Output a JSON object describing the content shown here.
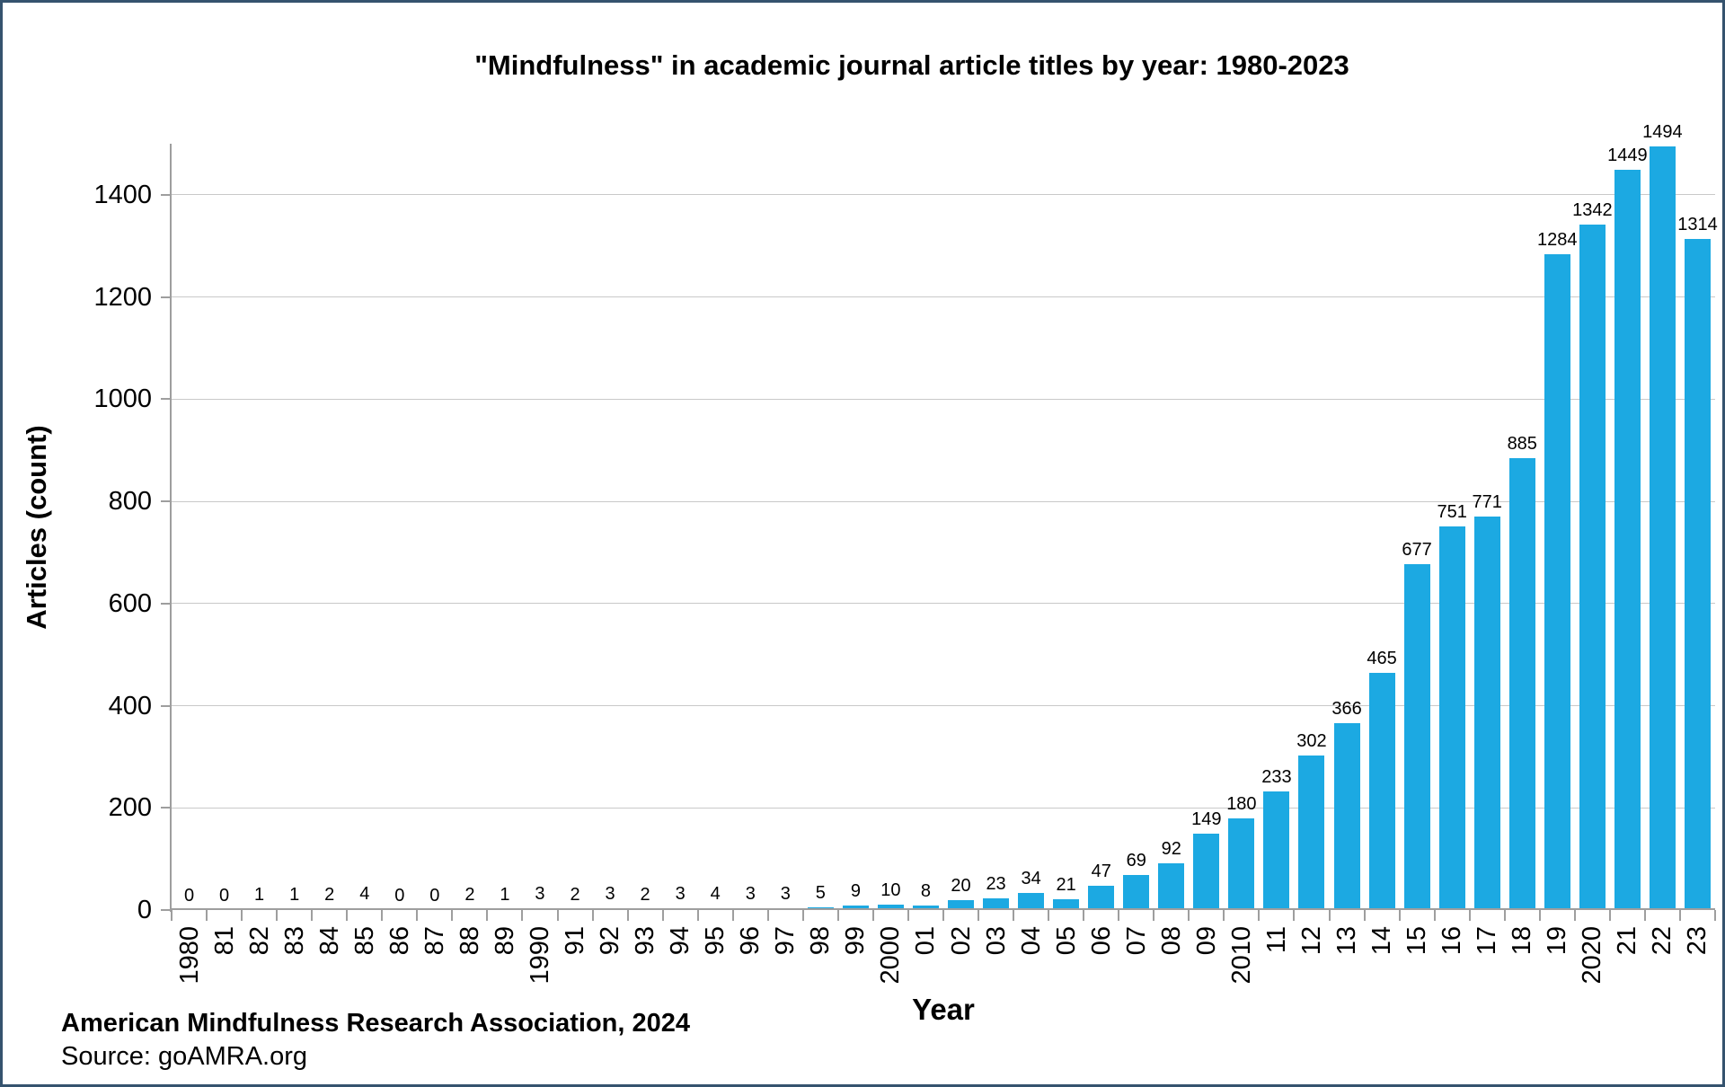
{
  "frame": {
    "background": "#FFFFFF",
    "border_color": "#35536E"
  },
  "chart_data": {
    "type": "bar",
    "title": "\"Mindfulness\" in academic journal article titles by year: 1980-2023",
    "xlabel": "Year",
    "ylabel": "Articles (count)",
    "categories": [
      "1980",
      "81",
      "82",
      "83",
      "84",
      "85",
      "86",
      "87",
      "88",
      "89",
      "1990",
      "91",
      "92",
      "93",
      "94",
      "95",
      "96",
      "97",
      "98",
      "99",
      "2000",
      "01",
      "02",
      "03",
      "04",
      "05",
      "06",
      "07",
      "08",
      "09",
      "2010",
      "11",
      "12",
      "13",
      "14",
      "15",
      "16",
      "17",
      "18",
      "19",
      "2020",
      "21",
      "22",
      "23"
    ],
    "values": [
      0,
      0,
      1,
      1,
      2,
      4,
      0,
      0,
      2,
      1,
      3,
      2,
      3,
      2,
      3,
      4,
      3,
      3,
      5,
      9,
      10,
      8,
      20,
      23,
      34,
      21,
      47,
      69,
      92,
      149,
      180,
      233,
      302,
      366,
      465,
      677,
      751,
      771,
      885,
      1284,
      1342,
      1449,
      1494,
      1314
    ],
    "ylim": [
      0,
      1500
    ],
    "yticks": [
      0,
      200,
      400,
      600,
      800,
      1000,
      1200,
      1400
    ],
    "grid": true,
    "legend": false,
    "data_labels": true,
    "bar_color": "#1CA9E2",
    "gridline_color": "#C9C9C9",
    "axis_color": "#9E9E9E",
    "text_color": "#000000"
  },
  "footer": {
    "attribution": "American Mindfulness Research Association, 2024",
    "source": "Source: goAMRA.org"
  }
}
